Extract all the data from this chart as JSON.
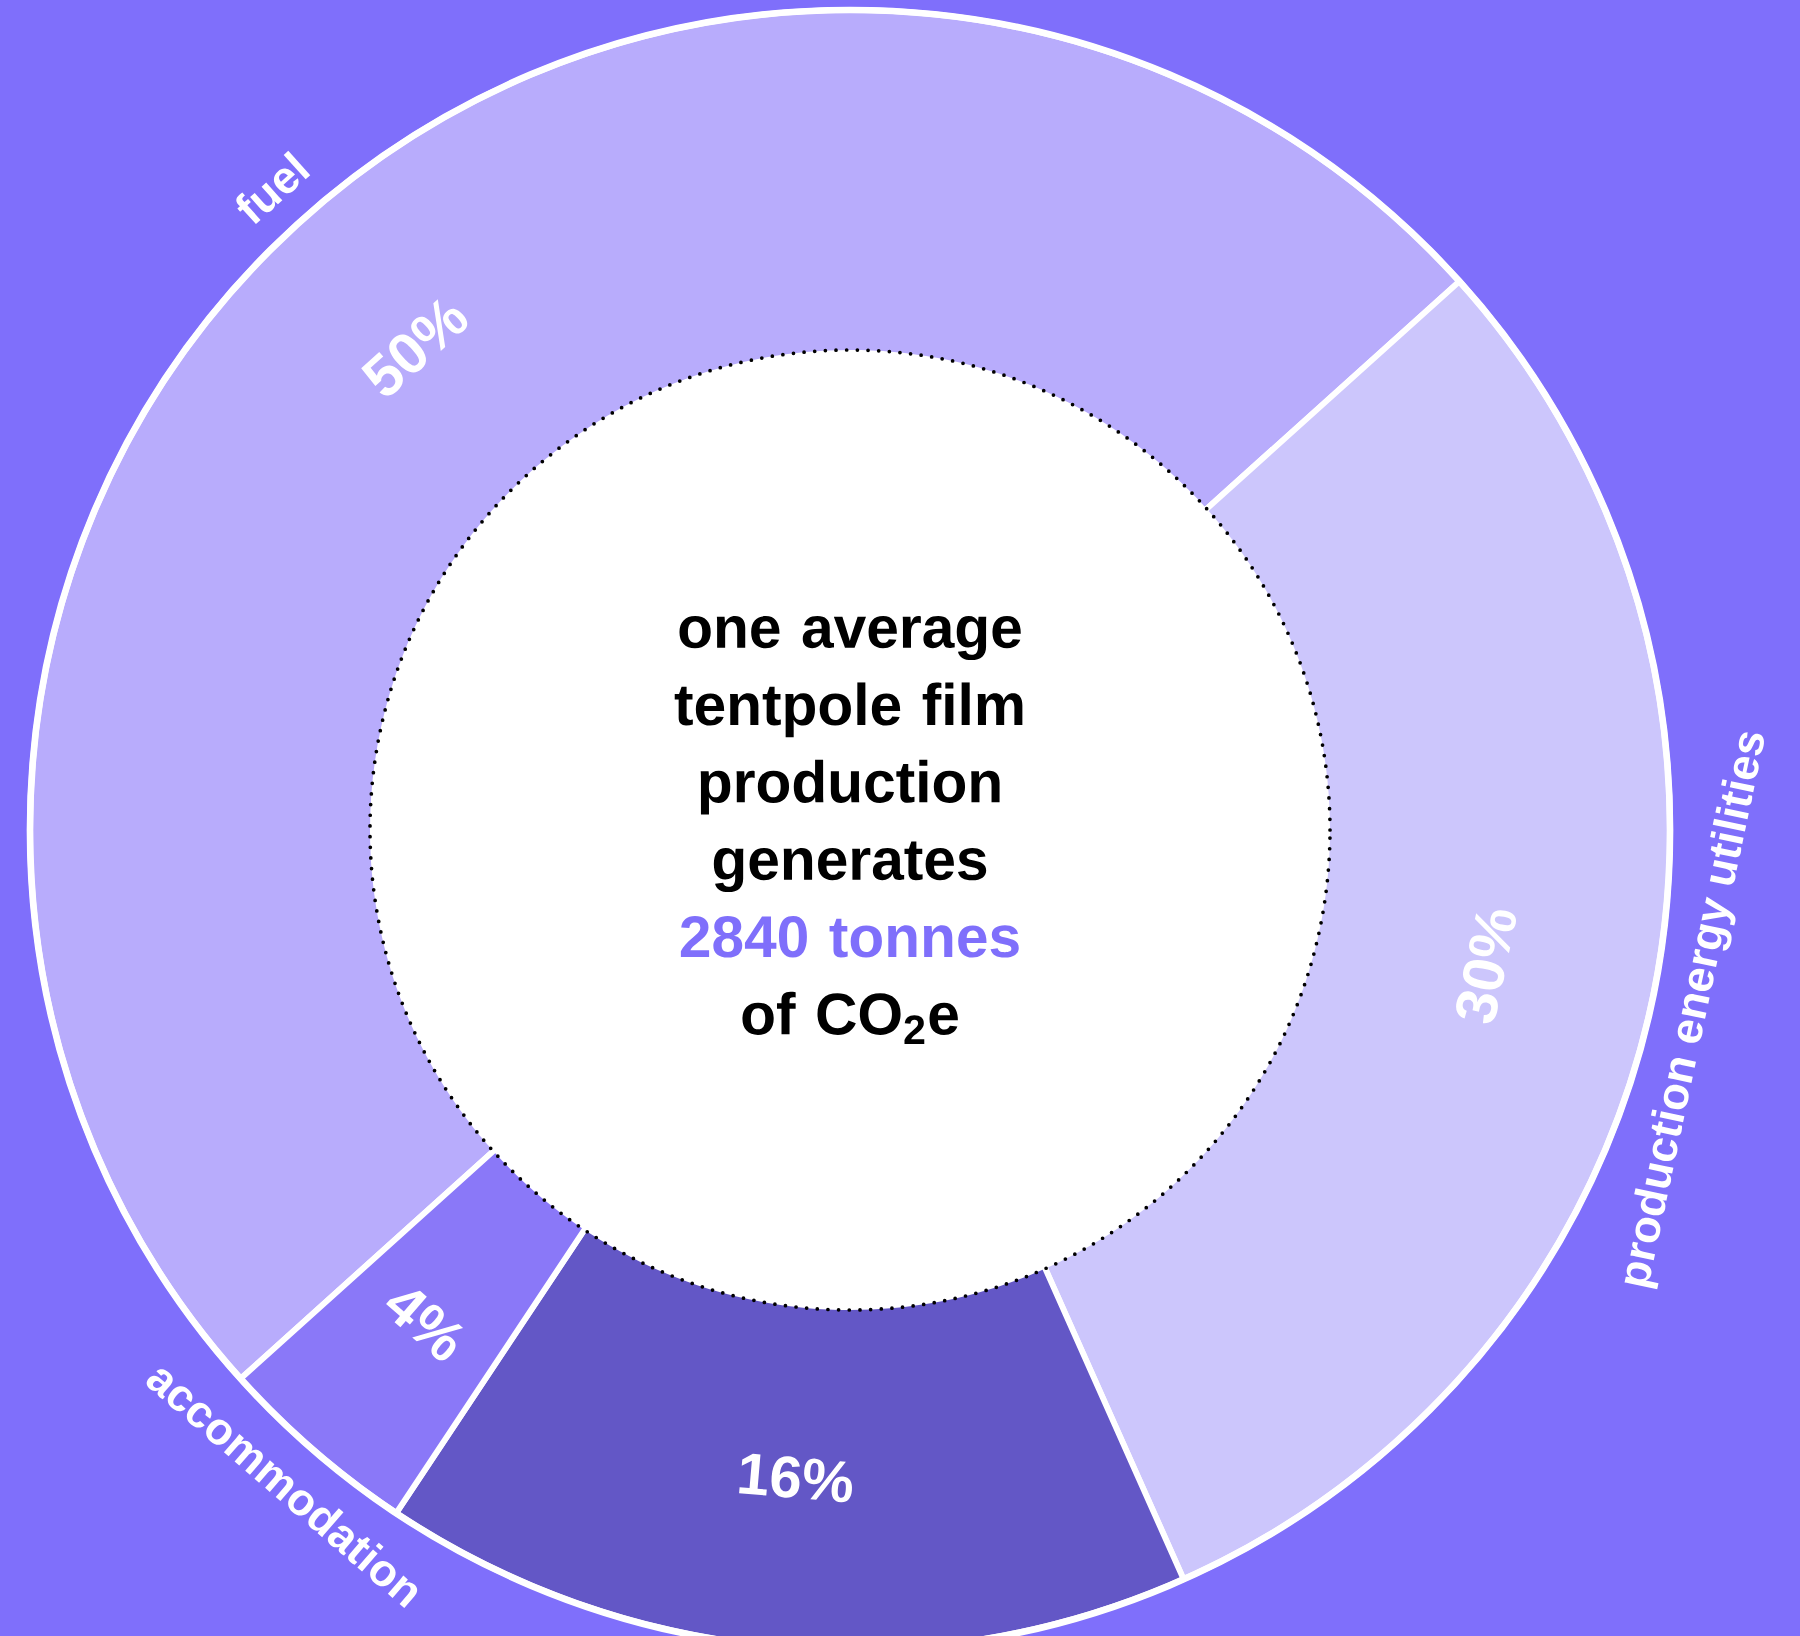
{
  "chart_data": {
    "type": "donut",
    "categories": [
      "fuel",
      "production energy utilities",
      null,
      "accommodation"
    ],
    "values": [
      50,
      30,
      16,
      4
    ],
    "colors": [
      "#b8acfc",
      "#ccc6fc",
      "#6357c6",
      "#8a78f8"
    ],
    "value_labels": [
      "50%",
      "30%",
      "16%",
      "4%"
    ],
    "annotations": [
      "one average tentpole film production generates",
      "2840 tonnes",
      "of CO$_{2}$e"
    ]
  }
}
